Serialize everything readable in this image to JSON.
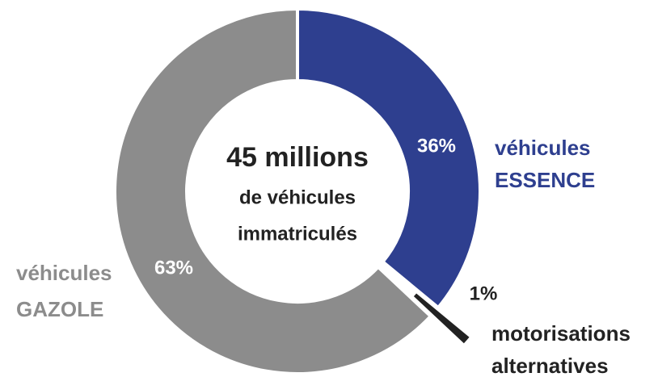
{
  "chart_data": {
    "type": "donut",
    "title": "45 millions",
    "subtitle": [
      "de véhicules",
      "immatriculés"
    ],
    "categories": [
      "véhicules ESSENCE",
      "motorisations alternatives",
      "véhicules GAZOLE"
    ],
    "values": [
      36,
      1,
      63
    ],
    "value_labels": [
      "36%",
      "1%",
      "63%"
    ],
    "colors": [
      "#2e3f8f",
      "#222222",
      "#8c8c8c"
    ]
  }
}
